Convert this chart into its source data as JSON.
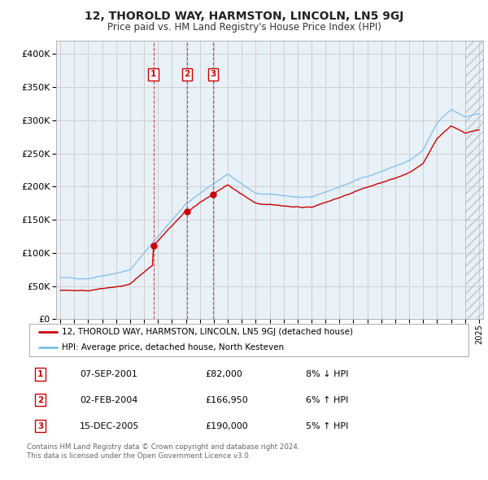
{
  "title": "12, THOROLD WAY, HARMSTON, LINCOLN, LN5 9GJ",
  "subtitle": "Price paid vs. HM Land Registry's House Price Index (HPI)",
  "legend_line1": "12, THOROLD WAY, HARMSTON, LINCOLN, LN5 9GJ (detached house)",
  "legend_line2": "HPI: Average price, detached house, North Kesteven",
  "footer1": "Contains HM Land Registry data © Crown copyright and database right 2024.",
  "footer2": "This data is licensed under the Open Government Licence v3.0.",
  "transactions": [
    {
      "num": 1,
      "date": "07-SEP-2001",
      "price": "£82,000",
      "pct": "8% ↓ HPI",
      "year": 2001.67
    },
    {
      "num": 2,
      "date": "02-FEB-2004",
      "price": "£166,950",
      "pct": "6% ↑ HPI",
      "year": 2004.08
    },
    {
      "num": 3,
      "date": "15-DEC-2005",
      "price": "£190,000",
      "pct": "5% ↑ HPI",
      "year": 2005.95
    }
  ],
  "hpi_color": "#7fbfea",
  "price_color": "#cc0000",
  "vline_color": "#cc0000",
  "grid_color": "#cccccc",
  "bg_color": "#e8f0f8",
  "ylim": [
    0,
    420000
  ],
  "yticks": [
    0,
    50000,
    100000,
    150000,
    200000,
    250000,
    300000,
    350000,
    400000
  ],
  "xlim_start": 1994.7,
  "xlim_end": 2025.3
}
